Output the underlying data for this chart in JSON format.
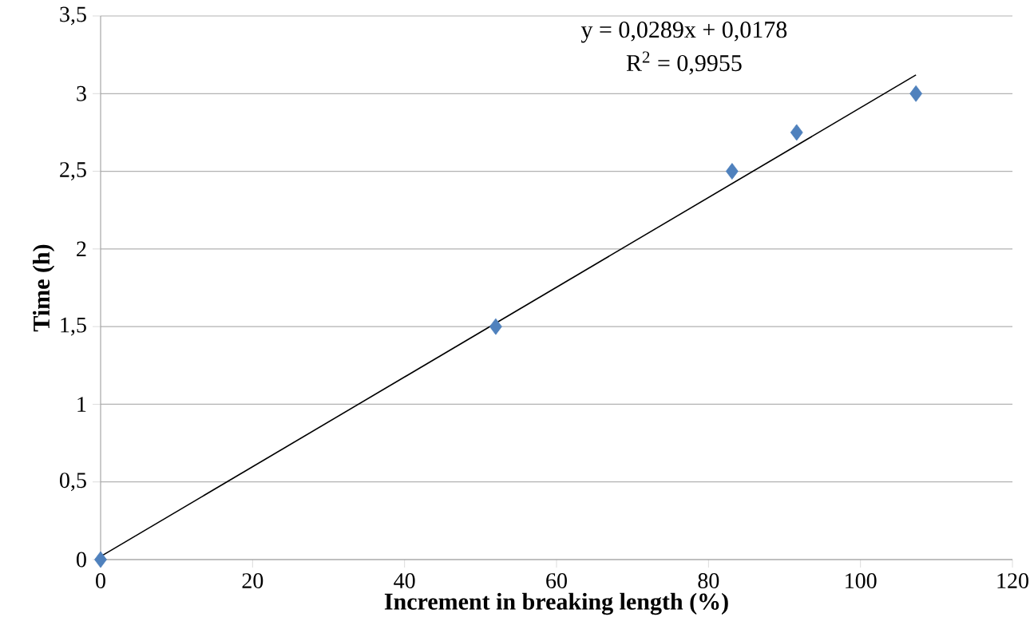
{
  "chart_data": {
    "type": "scatter",
    "xlabel": "Increment in breaking length (%)",
    "ylabel": "Time (h)",
    "series": [
      {
        "color": "#4f81bd",
        "marker": "diamond",
        "x": [
          0,
          52.0,
          83.1,
          91.6,
          107.3
        ],
        "values": [
          0,
          1.5,
          2.5,
          2.75,
          3.0
        ]
      },
      {
        "type": "line",
        "color": "#000000",
        "marker": "none",
        "x": [
          0,
          107.3
        ],
        "values": [
          0.02,
          3.12
        ]
      }
    ],
    "annotations": [
      "y = 0,0289x + 0,0178",
      "R$^{2}$ = 0,9955"
    ],
    "xlim": [
      0,
      120
    ],
    "ylim": [
      0,
      3.5
    ],
    "xticks": [
      0,
      20,
      40,
      60,
      80,
      100,
      120
    ],
    "yticks": [
      0,
      {
        "value": 0.5,
        "label": "0,5"
      },
      1,
      {
        "value": 1.5,
        "label": "1,5"
      },
      2,
      {
        "value": 2.5,
        "label": "2,5"
      },
      3,
      {
        "value": 3.5,
        "label": "3,5"
      }
    ],
    "grid": "y"
  }
}
